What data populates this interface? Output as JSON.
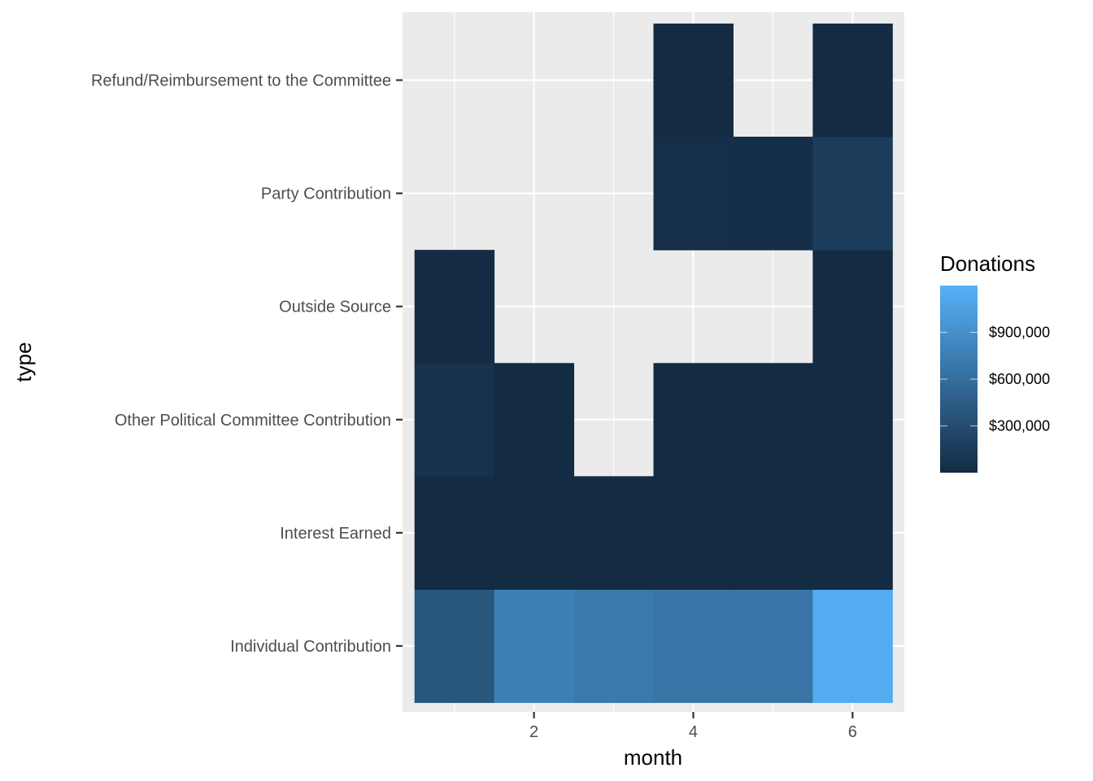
{
  "chart_data": {
    "type": "heatmap",
    "title": "",
    "xlabel": "month",
    "ylabel": "type",
    "x_ticks": [
      2,
      4,
      6
    ],
    "x_range": [
      0.35,
      6.65
    ],
    "categories_y": [
      "Individual Contribution",
      "Interest Earned",
      "Other Political Committee Contribution",
      "Outside Source",
      "Party Contribution",
      "Refund/Reimbursement to the Committee"
    ],
    "cells": [
      {
        "month": 1,
        "type": "Individual Contribution",
        "value": 400000
      },
      {
        "month": 2,
        "type": "Individual Contribution",
        "value": 760000
      },
      {
        "month": 3,
        "type": "Individual Contribution",
        "value": 700000
      },
      {
        "month": 4,
        "type": "Individual Contribution",
        "value": 660000
      },
      {
        "month": 5,
        "type": "Individual Contribution",
        "value": 660000
      },
      {
        "month": 6,
        "type": "Individual Contribution",
        "value": 1150000
      },
      {
        "month": 1,
        "type": "Interest Earned",
        "value": 200
      },
      {
        "month": 2,
        "type": "Interest Earned",
        "value": 200
      },
      {
        "month": 3,
        "type": "Interest Earned",
        "value": 200
      },
      {
        "month": 4,
        "type": "Interest Earned",
        "value": 200
      },
      {
        "month": 5,
        "type": "Interest Earned",
        "value": 200
      },
      {
        "month": 6,
        "type": "Interest Earned",
        "value": 200
      },
      {
        "month": 1,
        "type": "Other Political Committee Contribution",
        "value": 60000
      },
      {
        "month": 2,
        "type": "Other Political Committee Contribution",
        "value": 8000
      },
      {
        "month": 4,
        "type": "Other Political Committee Contribution",
        "value": 8000
      },
      {
        "month": 5,
        "type": "Other Political Committee Contribution",
        "value": 8000
      },
      {
        "month": 6,
        "type": "Other Political Committee Contribution",
        "value": 8000
      },
      {
        "month": 1,
        "type": "Outside Source",
        "value": 5000
      },
      {
        "month": 6,
        "type": "Outside Source",
        "value": 5000
      },
      {
        "month": 4,
        "type": "Party Contribution",
        "value": 40000
      },
      {
        "month": 5,
        "type": "Party Contribution",
        "value": 25000
      },
      {
        "month": 6,
        "type": "Party Contribution",
        "value": 150000
      },
      {
        "month": 4,
        "type": "Refund/Reimbursement to the Committee",
        "value": 2000
      },
      {
        "month": 6,
        "type": "Refund/Reimbursement to the Committee",
        "value": 2000
      }
    ],
    "legend": {
      "title": "Donations",
      "placement": "right",
      "breaks": [
        300000,
        600000,
        900000
      ],
      "break_labels": [
        "$300,000",
        "$600,000",
        "$900,000"
      ],
      "min": 0,
      "max": 1200000,
      "color_low": "#132B43",
      "color_high": "#56B1F7"
    },
    "colors": {
      "panel_background": "#EBEBEB",
      "grid": "#FFFFFF"
    },
    "grid": true
  }
}
